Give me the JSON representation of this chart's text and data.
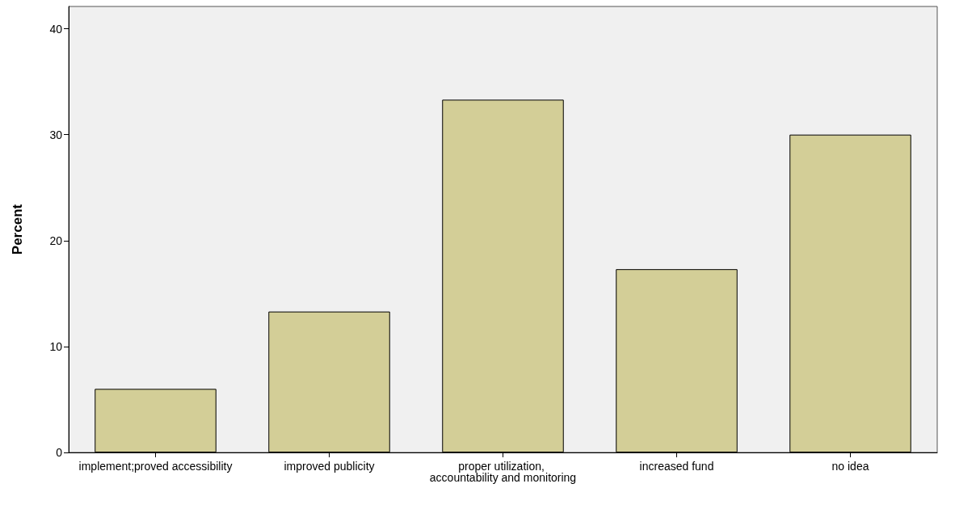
{
  "chart_data": {
    "type": "bar",
    "ylabel": "Percent",
    "categories": [
      "implement;proved accessibility",
      "improved publicity",
      "proper utilization, accountability and monitoring",
      "increased fund",
      "no idea"
    ],
    "values": [
      6.0,
      13.3,
      33.3,
      17.3,
      30.0
    ],
    "color": "#d3ce97",
    "ylim": [
      0,
      42.1
    ],
    "yticks": [
      0,
      10,
      20,
      30,
      40
    ],
    "grid": false
  }
}
